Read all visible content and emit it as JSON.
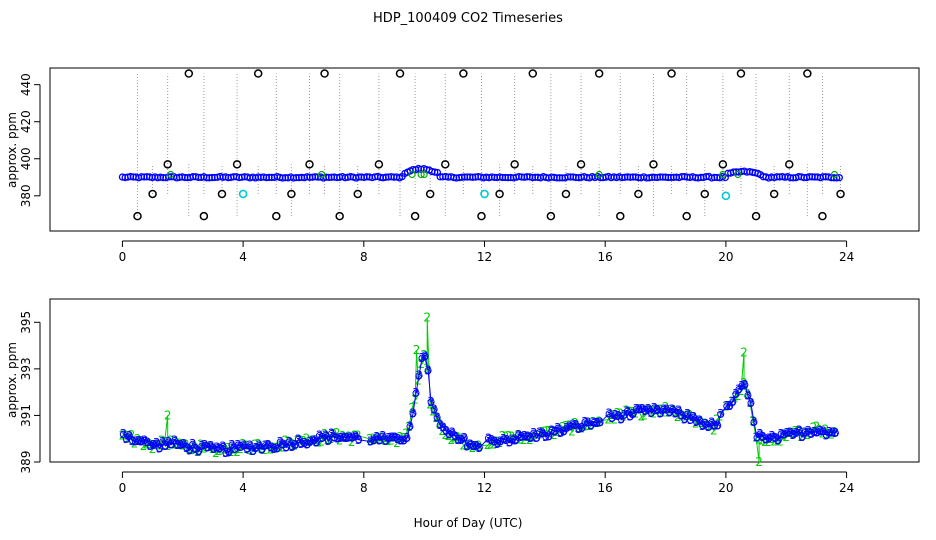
{
  "chart_data": [
    {
      "type": "scatter",
      "title": "HDP_100409  CO2 Timeseries",
      "ylabel": "approx. ppm",
      "xlabel": "",
      "xlim": [
        -2.4,
        26.4
      ],
      "ylim": [
        361,
        449
      ],
      "x_ticks": [
        0,
        4,
        8,
        12,
        16,
        20,
        24
      ],
      "y_ticks": [
        380,
        400,
        420,
        440
      ],
      "baseline_ppm": 390,
      "series": [
        {
          "marker": "circle",
          "color": "#0000ff"
        },
        {
          "marker": "circle",
          "color": "#00cccc"
        },
        {
          "marker": "circle",
          "color": "#000000"
        }
      ],
      "cyan_points": [
        [
          4.0,
          381
        ],
        [
          12.0,
          381
        ],
        [
          20.0,
          380
        ]
      ],
      "calibration_times": [
        0.5,
        1.0,
        1.5,
        2.2,
        2.7,
        3.3,
        3.8,
        4.5,
        5.1,
        5.6,
        6.2,
        6.7,
        7.2,
        7.8,
        8.5,
        9.2,
        9.7,
        10.2,
        10.7,
        11.3,
        11.9,
        12.5,
        13.0,
        13.6,
        14.2,
        14.7,
        15.2,
        15.8,
        16.5,
        17.1,
        17.6,
        18.2,
        18.7,
        19.3,
        19.9,
        20.5,
        21.0,
        21.6,
        22.1,
        22.7,
        23.2,
        23.8
      ],
      "calibration_levels": [
        369,
        381,
        397,
        446
      ]
    },
    {
      "type": "line",
      "ylabel": "approx. ppm",
      "xlabel": "Hour of Day (UTC)",
      "xlim": [
        -2.4,
        26.4
      ],
      "ylim": [
        389,
        396
      ],
      "x_ticks": [
        0,
        4,
        8,
        12,
        16,
        20,
        24
      ],
      "y_ticks": [
        389,
        391,
        393,
        395
      ],
      "series": [
        {
          "label_char": "2",
          "color": "#00cc00"
        },
        {
          "label_char": "3",
          "color": "#0000ff"
        }
      ],
      "profile_knots": [
        [
          0.0,
          390.2
        ],
        [
          0.5,
          389.9
        ],
        [
          1.0,
          389.7
        ],
        [
          1.5,
          389.8
        ],
        [
          2.0,
          389.7
        ],
        [
          3.0,
          389.5
        ],
        [
          4.0,
          389.6
        ],
        [
          5.0,
          389.7
        ],
        [
          6.0,
          389.9
        ],
        [
          7.0,
          390.1
        ],
        [
          7.8,
          390.0
        ],
        [
          8.2,
          390.0
        ],
        [
          9.0,
          389.9
        ],
        [
          9.4,
          390.1
        ],
        [
          9.6,
          391.2
        ],
        [
          9.75,
          392.2
        ],
        [
          9.9,
          393.3
        ],
        [
          10.05,
          393.8
        ],
        [
          10.2,
          391.5
        ],
        [
          10.5,
          390.5
        ],
        [
          11.0,
          390.0
        ],
        [
          11.5,
          389.8
        ],
        [
          11.8,
          389.6
        ],
        [
          12.1,
          389.9
        ],
        [
          13.0,
          390.0
        ],
        [
          14.0,
          390.2
        ],
        [
          15.0,
          390.5
        ],
        [
          15.7,
          390.7
        ],
        [
          16.0,
          390.9
        ],
        [
          17.0,
          391.1
        ],
        [
          18.0,
          391.2
        ],
        [
          19.0,
          390.8
        ],
        [
          19.6,
          390.5
        ],
        [
          20.0,
          391.3
        ],
        [
          20.3,
          391.8
        ],
        [
          20.6,
          392.3
        ],
        [
          20.8,
          391.4
        ],
        [
          21.0,
          390.2
        ],
        [
          21.3,
          389.9
        ],
        [
          22.0,
          390.1
        ],
        [
          23.0,
          390.4
        ],
        [
          23.7,
          390.2
        ]
      ],
      "spikes_series2": [
        [
          1.5,
          391.0
        ],
        [
          9.75,
          393.8
        ],
        [
          10.1,
          395.2
        ],
        [
          20.6,
          393.7
        ],
        [
          21.1,
          389.0
        ]
      ]
    }
  ]
}
